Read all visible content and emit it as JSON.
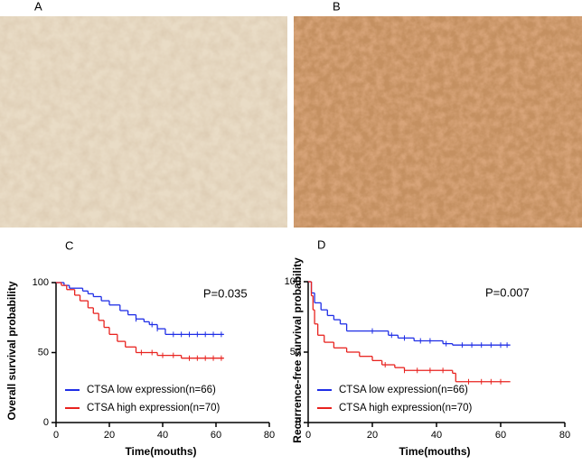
{
  "panel_labels": [
    "A",
    "B"
  ],
  "chart_data": [
    {
      "type": "step",
      "panel_label": "C",
      "ylabel": "Overall survival probability",
      "xlabel": "Time(mouths)",
      "annotation": "P=0.035",
      "xlim": [
        0,
        80
      ],
      "ylim": [
        0,
        100
      ],
      "xticks": [
        0,
        20,
        40,
        60,
        80
      ],
      "yticks": [
        0,
        50,
        100
      ],
      "legend": "lower left",
      "series": [
        {
          "name": "CTSA low expression(n=66)",
          "color": "#1f2ee6",
          "x": [
            0,
            3,
            5,
            10,
            12,
            14,
            17,
            20,
            24,
            27,
            30,
            33,
            35,
            38,
            41,
            63
          ],
          "values": [
            100,
            98,
            96,
            94,
            92,
            90,
            87,
            84,
            80,
            77,
            74,
            72,
            70,
            67,
            63,
            63
          ],
          "censor_x": [
            30,
            36,
            38,
            44,
            47,
            50,
            53,
            56,
            59,
            62
          ]
        },
        {
          "name": "CTSA high expression(n=70)",
          "color": "#e8231f",
          "x": [
            0,
            2,
            4,
            7,
            9,
            12,
            14,
            16,
            18,
            20,
            23,
            26,
            30,
            38,
            47,
            63
          ],
          "values": [
            100,
            98,
            95,
            91,
            87,
            82,
            78,
            73,
            68,
            63,
            58,
            54,
            50,
            48,
            46,
            46
          ],
          "censor_x": [
            32,
            36,
            40,
            44,
            50,
            53,
            56,
            59,
            62
          ]
        }
      ]
    },
    {
      "type": "step",
      "panel_label": "D",
      "ylabel": "Recurrence-free survival probability",
      "xlabel": "Time(mouths)",
      "annotation": "P=0.007",
      "xlim": [
        0,
        80
      ],
      "ylim": [
        0,
        100
      ],
      "xticks": [
        0,
        20,
        40,
        60,
        80
      ],
      "yticks": [
        0,
        50,
        100
      ],
      "legend": "lower left",
      "series": [
        {
          "name": "CTSA low expression(n=66)",
          "color": "#1f2ee6",
          "x": [
            0,
            1,
            2,
            4,
            6,
            8,
            10,
            12,
            25,
            28,
            33,
            42,
            45,
            63
          ],
          "values": [
            100,
            92,
            85,
            80,
            76,
            73,
            70,
            65,
            62,
            60,
            58,
            56,
            55,
            55
          ],
          "censor_x": [
            20,
            26,
            30,
            35,
            38,
            43,
            48,
            51,
            54,
            57,
            60,
            62
          ]
        },
        {
          "name": "CTSA high expression(n=70)",
          "color": "#e8231f",
          "x": [
            0,
            1,
            1.5,
            2,
            3,
            5,
            8,
            12,
            16,
            20,
            23,
            27,
            30,
            45,
            46,
            63
          ],
          "values": [
            100,
            90,
            80,
            70,
            62,
            57,
            53,
            50,
            47,
            44,
            41,
            39,
            37,
            35,
            29,
            29
          ],
          "censor_x": [
            24,
            30,
            34,
            38,
            42,
            50,
            54,
            57,
            60
          ]
        }
      ]
    }
  ]
}
